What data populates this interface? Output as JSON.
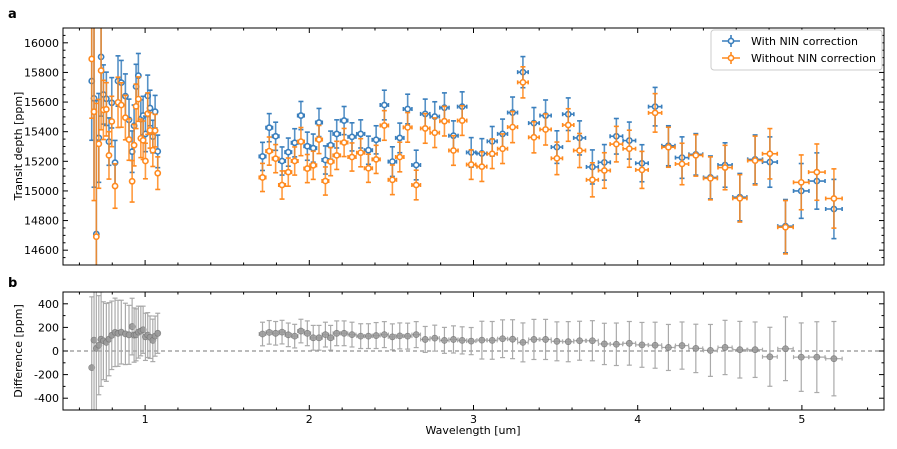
{
  "chart_data": [
    {
      "panel_label": "a",
      "type": "scatter",
      "xlabel": "",
      "ylabel": "Transit depth [ppm]",
      "xlim": [
        0.5,
        5.5
      ],
      "ylim": [
        14500,
        16100
      ],
      "xticks": [
        1,
        2,
        3,
        4,
        5
      ],
      "yticks": [
        14600,
        14800,
        15000,
        15200,
        15400,
        15600,
        15800,
        16000
      ],
      "legend_position": "top-right",
      "x": [
        0.675,
        0.689,
        0.703,
        0.718,
        0.732,
        0.746,
        0.764,
        0.78,
        0.797,
        0.817,
        0.835,
        0.855,
        0.88,
        0.902,
        0.921,
        0.933,
        0.945,
        0.959,
        0.974,
        0.988,
        1.002,
        1.016,
        1.03,
        1.047,
        1.061,
        1.077,
        1.715,
        1.756,
        1.795,
        1.834,
        1.872,
        1.911,
        1.949,
        1.988,
        2.024,
        2.059,
        2.098,
        2.13,
        2.167,
        2.212,
        2.26,
        2.313,
        2.36,
        2.407,
        2.457,
        2.506,
        2.551,
        2.599,
        2.651,
        2.706,
        2.764,
        2.823,
        2.878,
        2.931,
        2.986,
        3.051,
        3.114,
        3.177,
        3.238,
        3.301,
        3.368,
        3.439,
        3.508,
        3.577,
        3.646,
        3.724,
        3.797,
        3.87,
        3.949,
        4.026,
        4.106,
        4.187,
        4.27,
        4.354,
        4.443,
        4.532,
        4.622,
        4.715,
        4.805,
        4.9,
        4.996,
        5.091,
        5.195
      ],
      "xerr": [
        0.007,
        0.007,
        0.007,
        0.007,
        0.007,
        0.007,
        0.008,
        0.008,
        0.009,
        0.009,
        0.009,
        0.01,
        0.01,
        0.01,
        0.01,
        0.01,
        0.01,
        0.01,
        0.01,
        0.01,
        0.01,
        0.01,
        0.01,
        0.01,
        0.01,
        0.01,
        0.02,
        0.02,
        0.02,
        0.02,
        0.02,
        0.02,
        0.02,
        0.02,
        0.02,
        0.02,
        0.02,
        0.02,
        0.022,
        0.022,
        0.024,
        0.024,
        0.024,
        0.024,
        0.025,
        0.025,
        0.025,
        0.026,
        0.026,
        0.028,
        0.028,
        0.028,
        0.028,
        0.028,
        0.028,
        0.03,
        0.03,
        0.03,
        0.03,
        0.032,
        0.032,
        0.034,
        0.034,
        0.034,
        0.036,
        0.036,
        0.036,
        0.038,
        0.038,
        0.038,
        0.04,
        0.04,
        0.04,
        0.042,
        0.042,
        0.043,
        0.043,
        0.045,
        0.045,
        0.047,
        0.047,
        0.05,
        0.05
      ],
      "series": [
        {
          "name": "With NIN correction",
          "color": "#3a7fbd",
          "y": [
            15742,
            15625,
            14709,
            15358,
            15905,
            15651,
            15622,
            15333,
            15595,
            15191,
            15742,
            15731,
            15640,
            15480,
            15265,
            15440,
            15705,
            15778,
            15485,
            15509,
            15385,
            15642,
            15560,
            15367,
            15535,
            15267,
            15233,
            15427,
            15369,
            15202,
            15262,
            15325,
            15509,
            15302,
            15289,
            15462,
            15209,
            15309,
            15385,
            15475,
            15365,
            15385,
            15275,
            15345,
            15580,
            15198,
            15358,
            15553,
            15175,
            15520,
            15502,
            15562,
            15373,
            15569,
            15260,
            15253,
            15335,
            15385,
            15529,
            15802,
            15458,
            15509,
            15296,
            15518,
            15358,
            15162,
            15193,
            15369,
            15340,
            15187,
            15569,
            15305,
            15225,
            15247,
            15091,
            15175,
            14958,
            15213,
            15195,
            14762,
            15000,
            15067,
            14878
          ],
          "yerr": [
            400,
            600,
            900,
            300,
            400,
            200,
            180,
            160,
            170,
            150,
            170,
            150,
            150,
            140,
            140,
            140,
            150,
            150,
            130,
            130,
            120,
            140,
            120,
            110,
            110,
            110,
            95,
            95,
            95,
            95,
            95,
            95,
            95,
            95,
            95,
            95,
            95,
            95,
            95,
            95,
            95,
            95,
            95,
            95,
            100,
            100,
            100,
            100,
            100,
            100,
            100,
            100,
            100,
            100,
            100,
            100,
            100,
            100,
            105,
            105,
            105,
            105,
            110,
            110,
            115,
            115,
            120,
            120,
            125,
            125,
            130,
            135,
            140,
            140,
            145,
            150,
            160,
            165,
            170,
            180,
            185,
            190,
            200
          ]
        },
        {
          "name": "Without NIN correction",
          "color": "#ff8a1f",
          "y": [
            15891,
            15535,
            14691,
            15318,
            15813,
            15547,
            15551,
            15240,
            15469,
            15033,
            15598,
            15580,
            15495,
            15347,
            15065,
            15309,
            15571,
            15620,
            15355,
            15342,
            15202,
            15522,
            15409,
            15275,
            15407,
            15120,
            15091,
            15269,
            15218,
            15040,
            15127,
            15202,
            15333,
            15151,
            15173,
            15347,
            15067,
            15198,
            15240,
            15327,
            15229,
            15258,
            15153,
            15213,
            15442,
            15075,
            15229,
            15429,
            15040,
            15422,
            15393,
            15471,
            15273,
            15475,
            15178,
            15164,
            15251,
            15285,
            15431,
            15733,
            15362,
            15415,
            15220,
            15445,
            15273,
            15075,
            15138,
            15316,
            15285,
            15142,
            15527,
            15295,
            15182,
            15240,
            15085,
            15158,
            14950,
            15205,
            15251,
            14755,
            15058,
            15127,
            14949
          ],
          "yerr": [
            400,
            600,
            900,
            300,
            400,
            200,
            180,
            160,
            170,
            150,
            170,
            150,
            150,
            140,
            140,
            140,
            150,
            150,
            130,
            130,
            120,
            140,
            120,
            110,
            110,
            110,
            95,
            95,
            95,
            95,
            95,
            95,
            95,
            95,
            95,
            95,
            95,
            95,
            95,
            95,
            95,
            95,
            95,
            95,
            100,
            100,
            100,
            100,
            100,
            100,
            100,
            100,
            100,
            100,
            100,
            100,
            100,
            100,
            105,
            105,
            105,
            105,
            110,
            110,
            115,
            115,
            120,
            120,
            125,
            125,
            130,
            135,
            140,
            140,
            145,
            150,
            160,
            165,
            170,
            180,
            185,
            190,
            200
          ]
        }
      ]
    },
    {
      "panel_label": "b",
      "type": "scatter",
      "xlabel": "Wavelength [um]",
      "ylabel": "Difference [ppm]",
      "xlim": [
        0.5,
        5.5
      ],
      "ylim": [
        -500,
        500
      ],
      "xticks": [
        1,
        2,
        3,
        4,
        5
      ],
      "yticks": [
        -400,
        -200,
        0,
        200,
        400
      ],
      "reference_line": 0,
      "series": [
        {
          "color": "#888888",
          "y": [
            -141,
            92,
            22,
            49,
            100,
            87,
            73,
            100,
            133,
            158,
            150,
            160,
            145,
            137,
            207,
            135,
            137,
            160,
            169,
            180,
            120,
            135,
            117,
            90,
            126,
            150,
            144,
            158,
            150,
            160,
            137,
            126,
            169,
            150,
            112,
            112,
            139,
            112,
            150,
            150,
            139,
            126,
            126,
            131,
            139,
            120,
            128,
            126,
            139,
            98,
            109,
            90,
            98,
            90,
            84,
            92,
            90,
            104,
            100,
            73,
            98,
            98,
            82,
            79,
            87,
            87,
            60,
            57,
            65,
            52,
            49,
            30,
            46,
            22,
            5,
            30,
            11,
            11,
            -49,
            19,
            -52,
            -52,
            -65
          ],
          "yerr": [
            600,
            600,
            550,
            420,
            400,
            330,
            330,
            310,
            290,
            290,
            280,
            270,
            260,
            250,
            240,
            230,
            220,
            220,
            210,
            200,
            200,
            190,
            180,
            180,
            170,
            170,
            100,
            100,
            100,
            100,
            100,
            100,
            100,
            105,
            105,
            105,
            105,
            105,
            105,
            105,
            105,
            105,
            105,
            110,
            110,
            110,
            110,
            110,
            110,
            110,
            110,
            110,
            115,
            115,
            115,
            160,
            160,
            160,
            165,
            165,
            170,
            170,
            165,
            170,
            165,
            170,
            175,
            180,
            185,
            190,
            195,
            195,
            200,
            205,
            220,
            230,
            240,
            235,
            250,
            270,
            290,
            300,
            315
          ]
        }
      ]
    }
  ]
}
